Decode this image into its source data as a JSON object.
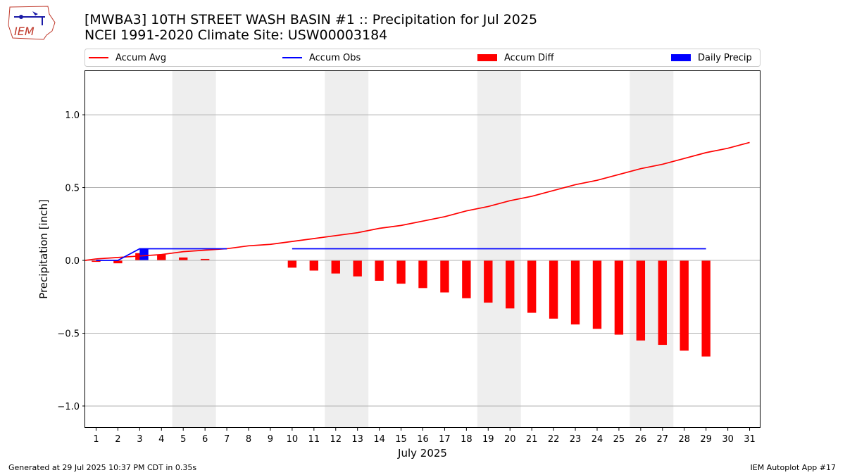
{
  "title_line1": "[MWBA3] 10TH STREET WASH BASIN #1 :: Precipitation for Jul 2025",
  "title_line2": "NCEI 1991-2020 Climate Site: USW00003184",
  "footer_left": "Generated at 29 Jul 2025 10:37 PM CDT in 0.35s",
  "footer_right": "IEM Autoplot App #17",
  "logo_text": "IEM",
  "colors": {
    "avg": "#ff0000",
    "obs": "#0000ff",
    "diff": "#ff0000",
    "daily": "#0000ff",
    "weekend": "#eeeeee",
    "grid": "#b0b0b0"
  },
  "chart_data": {
    "type": "bar",
    "xlabel": "July 2025",
    "ylabel": "Precipitation [inch]",
    "ylim": [
      -1.15,
      1.3
    ],
    "yticks": [
      1.0,
      0.5,
      0.0,
      -0.5,
      -1.0
    ],
    "ytick_labels": [
      "1.0",
      "0.5",
      "0.0",
      "−0.5",
      "−1.0"
    ],
    "grid": "horizontal",
    "legend_placement": "top",
    "x": [
      1,
      2,
      3,
      4,
      5,
      6,
      7,
      8,
      9,
      10,
      11,
      12,
      13,
      14,
      15,
      16,
      17,
      18,
      19,
      20,
      21,
      22,
      23,
      24,
      25,
      26,
      27,
      28,
      29,
      30,
      31
    ],
    "weekend_days": [
      [
        5,
        6
      ],
      [
        12,
        13
      ],
      [
        19,
        20
      ],
      [
        26,
        27
      ]
    ],
    "series": [
      {
        "name": "Accum Avg",
        "kind": "line",
        "x": [
          1,
          2,
          3,
          4,
          5,
          6,
          7,
          8,
          9,
          10,
          11,
          12,
          13,
          14,
          15,
          16,
          17,
          18,
          19,
          20,
          21,
          22,
          23,
          24,
          25,
          26,
          27,
          28,
          29,
          30,
          31
        ],
        "values": [
          0.01,
          0.02,
          0.03,
          0.04,
          0.06,
          0.07,
          0.08,
          0.1,
          0.11,
          0.13,
          0.15,
          0.17,
          0.19,
          0.22,
          0.24,
          0.27,
          0.3,
          0.34,
          0.37,
          0.41,
          0.44,
          0.48,
          0.52,
          0.55,
          0.59,
          0.63,
          0.66,
          0.7,
          0.74,
          0.77,
          0.81
        ]
      },
      {
        "name": "Accum Obs",
        "kind": "line",
        "x": [
          1,
          2,
          3,
          4,
          5,
          6,
          7,
          10,
          11,
          12,
          13,
          14,
          15,
          16,
          17,
          18,
          19,
          20,
          21,
          22,
          23,
          24,
          25,
          26,
          27,
          28,
          29
        ],
        "values": [
          0.0,
          0.0,
          0.08,
          0.08,
          0.08,
          0.08,
          0.08,
          0.08,
          0.08,
          0.08,
          0.08,
          0.08,
          0.08,
          0.08,
          0.08,
          0.08,
          0.08,
          0.08,
          0.08,
          0.08,
          0.08,
          0.08,
          0.08,
          0.08,
          0.08,
          0.08,
          0.08
        ]
      },
      {
        "name": "Accum Diff",
        "kind": "bar",
        "x": [
          1,
          2,
          3,
          4,
          5,
          6,
          7,
          10,
          11,
          12,
          13,
          14,
          15,
          16,
          17,
          18,
          19,
          20,
          21,
          22,
          23,
          24,
          25,
          26,
          27,
          28,
          29
        ],
        "values": [
          -0.01,
          -0.02,
          0.05,
          0.04,
          0.02,
          0.01,
          0.0,
          -0.05,
          -0.07,
          -0.09,
          -0.11,
          -0.14,
          -0.16,
          -0.19,
          -0.22,
          -0.26,
          -0.29,
          -0.33,
          -0.36,
          -0.4,
          -0.44,
          -0.47,
          -0.51,
          -0.55,
          -0.58,
          -0.62,
          -0.66
        ]
      },
      {
        "name": "Daily Precip",
        "kind": "bar",
        "x": [
          3
        ],
        "values": [
          0.08
        ]
      }
    ]
  }
}
